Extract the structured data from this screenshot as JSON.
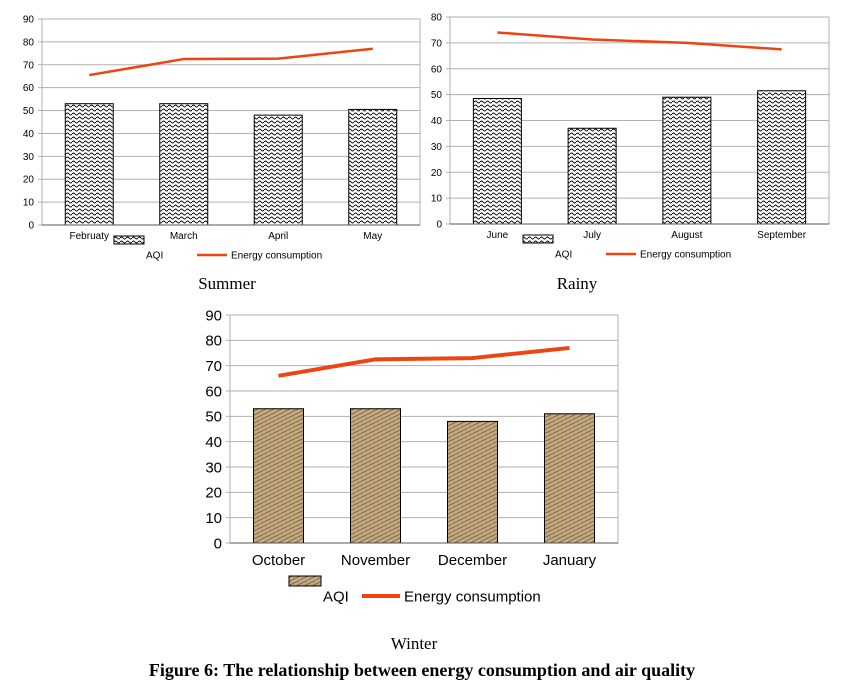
{
  "figure_caption": "Figure 6: The relationship between energy consumption and air quality",
  "colors": {
    "energy_line": "#ee4411",
    "bar_outline": "#000000",
    "winter_bar_fill": "#c8ae84",
    "grid": "#b0b0b0"
  },
  "chart_data": [
    {
      "type": "bar",
      "panel_label": "Summer",
      "categories": [
        "Februaty",
        "March",
        "April",
        "May"
      ],
      "series": [
        {
          "name": "AQI",
          "type": "bar",
          "values": [
            53,
            53,
            48,
            50.5
          ]
        },
        {
          "name": "Energy consumption",
          "type": "line",
          "values": [
            65.5,
            72.5,
            72.7,
            77
          ]
        }
      ],
      "ylim": [
        0,
        90
      ],
      "yticks": [
        0,
        10,
        20,
        30,
        40,
        50,
        60,
        70,
        80,
        90
      ],
      "grid": true,
      "legend": "bottom"
    },
    {
      "type": "bar",
      "panel_label": "Rainy",
      "categories": [
        "June",
        "July",
        "August",
        "September"
      ],
      "series": [
        {
          "name": "AQI",
          "type": "bar",
          "values": [
            48.5,
            37,
            49,
            51.5
          ]
        },
        {
          "name": "Energy consumption",
          "type": "line",
          "values": [
            74,
            71.3,
            70,
            67.5
          ]
        }
      ],
      "ylim": [
        0,
        80
      ],
      "yticks": [
        0,
        10,
        20,
        30,
        40,
        50,
        60,
        70,
        80
      ],
      "grid": true,
      "legend": "bottom"
    },
    {
      "type": "bar",
      "panel_label": "Winter",
      "categories": [
        "October",
        "November",
        "December",
        "January"
      ],
      "series": [
        {
          "name": "AQI",
          "type": "bar",
          "values": [
            53,
            53,
            48,
            51
          ]
        },
        {
          "name": "Energy consumption",
          "type": "line",
          "values": [
            66,
            72.5,
            73,
            77
          ]
        }
      ],
      "ylim": [
        0,
        90
      ],
      "yticks": [
        0,
        10,
        20,
        30,
        40,
        50,
        60,
        70,
        80,
        90
      ],
      "grid": true,
      "legend": "bottom"
    }
  ]
}
